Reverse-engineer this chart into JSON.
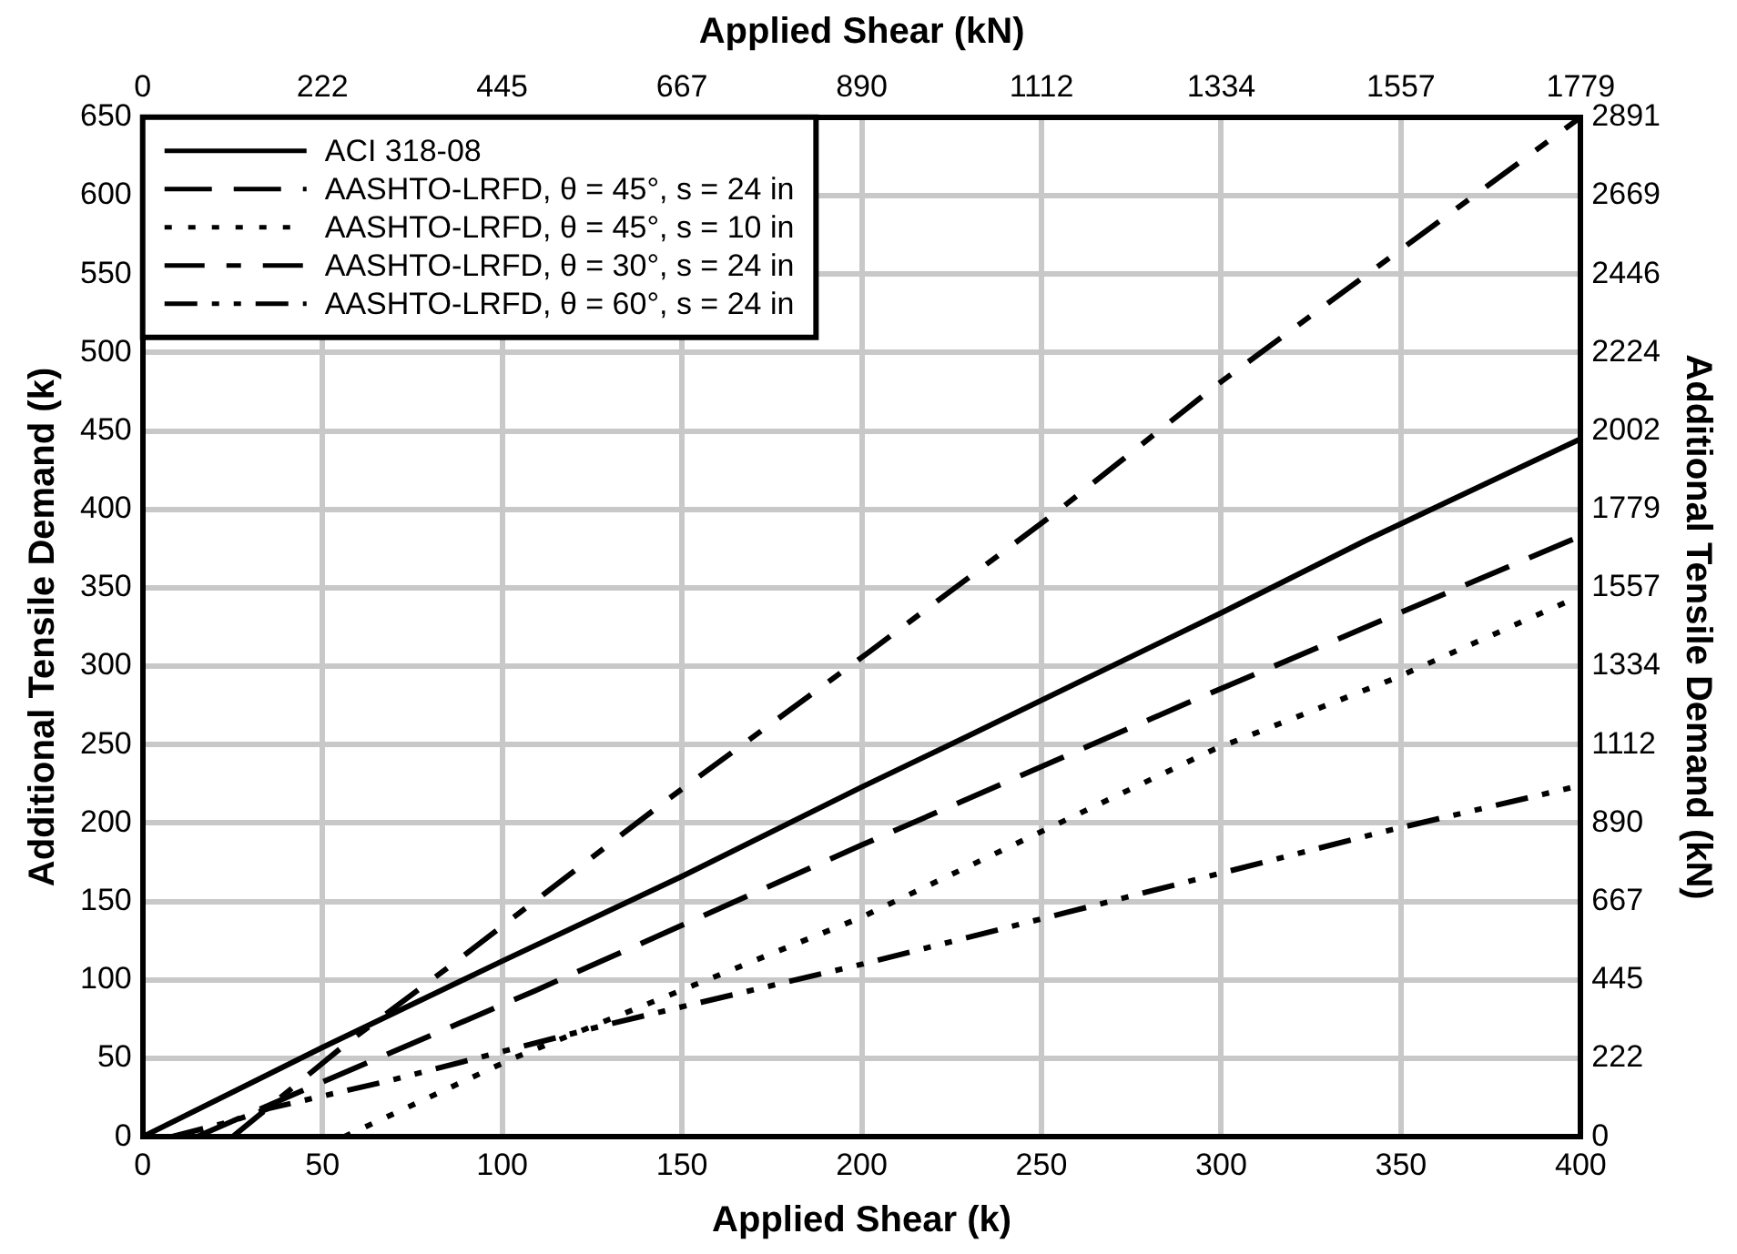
{
  "chart_data": {
    "type": "line",
    "xlabel": "Applied Shear (k)",
    "ylabel": "Additional Tensile Demand (k)",
    "x2label": "Applied Shear (kN)",
    "y2label": "Additional Tensile Demand (kN)",
    "xlim": [
      0,
      400
    ],
    "xticks": [
      0,
      50,
      100,
      150,
      200,
      250,
      300,
      350,
      400
    ],
    "ylim": [
      0,
      650
    ],
    "yticks": [
      0,
      50,
      100,
      150,
      200,
      250,
      300,
      350,
      400,
      450,
      500,
      550,
      600,
      650
    ],
    "x2lim": [
      0,
      1779.2
    ],
    "x2ticks": [
      0,
      {
        "value": 222.4,
        "label": "222"
      },
      {
        "value": 444.8,
        "label": "445"
      },
      {
        "value": 667.2,
        "label": "667"
      },
      {
        "value": 889.6,
        "label": "890"
      },
      1112,
      {
        "value": 1334.4,
        "label": "1334"
      },
      {
        "value": 1556.8,
        "label": "1557"
      },
      {
        "value": 1779.2,
        "label": "1779"
      }
    ],
    "y2lim": [
      0,
      2891.2
    ],
    "y2ticks": [
      0,
      {
        "value": 222.4,
        "label": "222"
      },
      {
        "value": 444.8,
        "label": "445"
      },
      {
        "value": 667.2,
        "label": "667"
      },
      {
        "value": 889.6,
        "label": "890"
      },
      1112,
      {
        "value": 1334.4,
        "label": "1334"
      },
      {
        "value": 1556.8,
        "label": "1557"
      },
      {
        "value": 1779.2,
        "label": "1779"
      },
      {
        "value": 2001.6,
        "label": "2002"
      },
      2224,
      {
        "value": 2446.4,
        "label": "2446"
      },
      {
        "value": 2668.8,
        "label": "2669"
      },
      {
        "value": 2891.2,
        "label": "2891"
      }
    ],
    "grid": true,
    "legend": "top left",
    "marker": "none",
    "series": [
      {
        "name": "ACI 318-08",
        "color": "#000000",
        "line_style": "solid",
        "x": [
          0,
          50,
          100,
          150,
          200,
          230,
          300,
          340,
          400
        ],
        "values": [
          0,
          57,
          112,
          166,
          223,
          256,
          334,
          380,
          445
        ]
      },
      {
        "name": "AASHTO-LRFD, θ = 45°, s = 24 in",
        "color": "#000000",
        "line_style": "dashed",
        "x": [
          15,
          47,
          109,
          200,
          291,
          400
        ],
        "values": [
          0,
          32,
          93,
          186,
          277,
          383
        ]
      },
      {
        "name": "AASHTO-LRFD, θ = 45°, s = 10 in",
        "color": "#000000",
        "line_style": "dotted",
        "x": [
          56,
          103,
          200,
          298,
          348,
          400
        ],
        "values": [
          0,
          50,
          140,
          247,
          292,
          345
        ]
      },
      {
        "name": "AASHTO-LRFD, θ = 30°, s = 24 in",
        "color": "#000000",
        "line_style": "dashdot",
        "x": [
          25,
          57,
          85,
          146,
          202,
          254,
          298,
          400
        ],
        "values": [
          0,
          60,
          108,
          215,
          309,
          398,
          478,
          650
        ]
      },
      {
        "name": "AASHTO-LRFD, θ = 60°, s = 24 in",
        "color": "#000000",
        "line_style": "dashdotdot",
        "x": [
          8,
          25,
          35,
          69,
          130,
          200,
          257,
          346,
          400
        ],
        "values": [
          0,
          10,
          18,
          36,
          72,
          110,
          143,
          195,
          224
        ]
      }
    ]
  }
}
